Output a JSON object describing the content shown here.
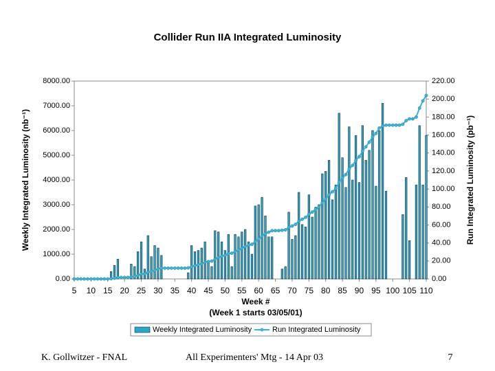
{
  "chart_data": {
    "type": "bar",
    "title": "Collider Run IIA Integrated Luminosity",
    "x_label": "Week  #",
    "x_sublabel": "(Week 1 starts 03/05/01)",
    "y_label": "Weekly Integrated Luminosity (nb⁻¹)",
    "y2_label": "Run Integrated Luminosity (pb⁻¹)",
    "x": [
      5,
      6,
      7,
      8,
      9,
      10,
      11,
      12,
      13,
      14,
      15,
      16,
      17,
      18,
      19,
      20,
      21,
      22,
      23,
      24,
      25,
      26,
      27,
      28,
      29,
      30,
      31,
      32,
      33,
      34,
      35,
      36,
      37,
      38,
      39,
      40,
      41,
      42,
      43,
      44,
      45,
      46,
      47,
      48,
      49,
      50,
      51,
      52,
      53,
      54,
      55,
      56,
      57,
      58,
      59,
      60,
      61,
      62,
      63,
      64,
      65,
      66,
      67,
      68,
      69,
      70,
      71,
      72,
      73,
      74,
      75,
      76,
      77,
      78,
      79,
      80,
      81,
      82,
      83,
      84,
      85,
      86,
      87,
      88,
      89,
      90,
      91,
      92,
      93,
      94,
      95,
      96,
      97,
      98,
      99,
      100,
      101,
      102,
      103,
      104,
      105,
      106,
      107,
      108,
      109,
      110
    ],
    "series": [
      {
        "name": "Weekly Integrated Luminosity",
        "type": "bar",
        "color": "#2aa7c9",
        "values": [
          0,
          0,
          0,
          0,
          0,
          0,
          0,
          0,
          0,
          0,
          0,
          300,
          550,
          800,
          0,
          0,
          0,
          600,
          500,
          1100,
          1500,
          400,
          1750,
          900,
          1350,
          1250,
          950,
          0,
          0,
          0,
          0,
          0,
          0,
          0,
          250,
          1350,
          1100,
          1150,
          1250,
          1500,
          700,
          500,
          1950,
          1900,
          1500,
          1150,
          1800,
          500,
          1800,
          1700,
          1900,
          2000,
          1500,
          1000,
          2950,
          3000,
          3300,
          2550,
          1700,
          1700,
          0,
          0,
          400,
          500,
          2700,
          1600,
          1750,
          3500,
          2200,
          2100,
          3400,
          2500,
          2900,
          3000,
          4250,
          4350,
          4800,
          3200,
          3800,
          6700,
          4900,
          3700,
          6150,
          4000,
          5800,
          3900,
          6200,
          4800,
          5200,
          6000,
          3750,
          6000,
          7100,
          3550,
          0,
          0,
          0,
          0,
          2600,
          4100,
          1550,
          0,
          3800,
          6200,
          3800,
          5800
        ]
      },
      {
        "name": "Run Integrated Luminosity",
        "type": "line",
        "axis": "y2",
        "color": "#3cb4d4",
        "values": [
          0,
          0,
          0,
          0,
          0,
          0,
          0,
          0,
          0,
          0,
          0,
          0.3,
          0.9,
          1.7,
          1.7,
          1.7,
          1.7,
          2.3,
          2.8,
          3.9,
          5.4,
          5.8,
          7.5,
          8.4,
          9.8,
          11,
          12,
          12,
          12,
          12,
          12,
          12,
          12,
          12,
          12.3,
          13.6,
          14.7,
          15.9,
          17.1,
          18.6,
          19.3,
          19.8,
          21.8,
          23.7,
          25.2,
          26.3,
          28.1,
          28.6,
          30.4,
          32.1,
          34,
          36,
          37.5,
          38.5,
          41.5,
          44.5,
          47.8,
          50.3,
          52,
          53.7,
          53.7,
          53.7,
          54.1,
          54.6,
          57.3,
          58.9,
          60.7,
          64.2,
          66.4,
          68.5,
          71.9,
          74.4,
          77.3,
          80.3,
          84.5,
          88.9,
          93.7,
          96.9,
          100.7,
          107.4,
          112.3,
          116,
          122.2,
          126.2,
          132,
          135.9,
          142.1,
          146.9,
          152.1,
          158.1,
          161.8,
          167.8,
          170,
          171,
          171,
          171,
          171,
          171,
          172,
          176,
          178,
          178,
          180,
          190,
          198,
          204
        ]
      }
    ],
    "xlim": [
      5,
      110
    ],
    "xticks": [
      5,
      10,
      15,
      20,
      25,
      30,
      35,
      40,
      45,
      50,
      55,
      60,
      65,
      70,
      75,
      80,
      85,
      90,
      95,
      100,
      105,
      110
    ],
    "ylim": [
      0,
      8000
    ],
    "yticks": [
      {
        "value": 0,
        "label": "0.00"
      },
      {
        "value": 1000,
        "label": "1000.00"
      },
      {
        "value": 2000,
        "label": "2000.00"
      },
      {
        "value": 3000,
        "label": "3000.00"
      },
      {
        "value": 4000,
        "label": "4000.00"
      },
      {
        "value": 5000,
        "label": "5000.00"
      },
      {
        "value": 6000,
        "label": "6000.00"
      },
      {
        "value": 7000,
        "label": "7000.00"
      },
      {
        "value": 8000,
        "label": "8000.00"
      }
    ],
    "y2lim": [
      0,
      220
    ],
    "y2ticks": [
      {
        "value": 0,
        "label": "0.00"
      },
      {
        "value": 20,
        "label": "20.00"
      },
      {
        "value": 40,
        "label": "40.00"
      },
      {
        "value": 60,
        "label": "60.00"
      },
      {
        "value": 80,
        "label": "80.00"
      },
      {
        "value": 100,
        "label": "100.00"
      },
      {
        "value": 120,
        "label": "120.00"
      },
      {
        "value": 140,
        "label": "140.00"
      },
      {
        "value": 160,
        "label": "160.00"
      },
      {
        "value": 180,
        "label": "180.00"
      },
      {
        "value": 200,
        "label": "200.00"
      },
      {
        "value": 220,
        "label": "220.00"
      }
    ],
    "legend": "bottom"
  },
  "footer": {
    "left": "K. Gollwitzer - FNAL",
    "center": "All Experimenters' Mtg - 14 Apr 03",
    "right": "7"
  }
}
